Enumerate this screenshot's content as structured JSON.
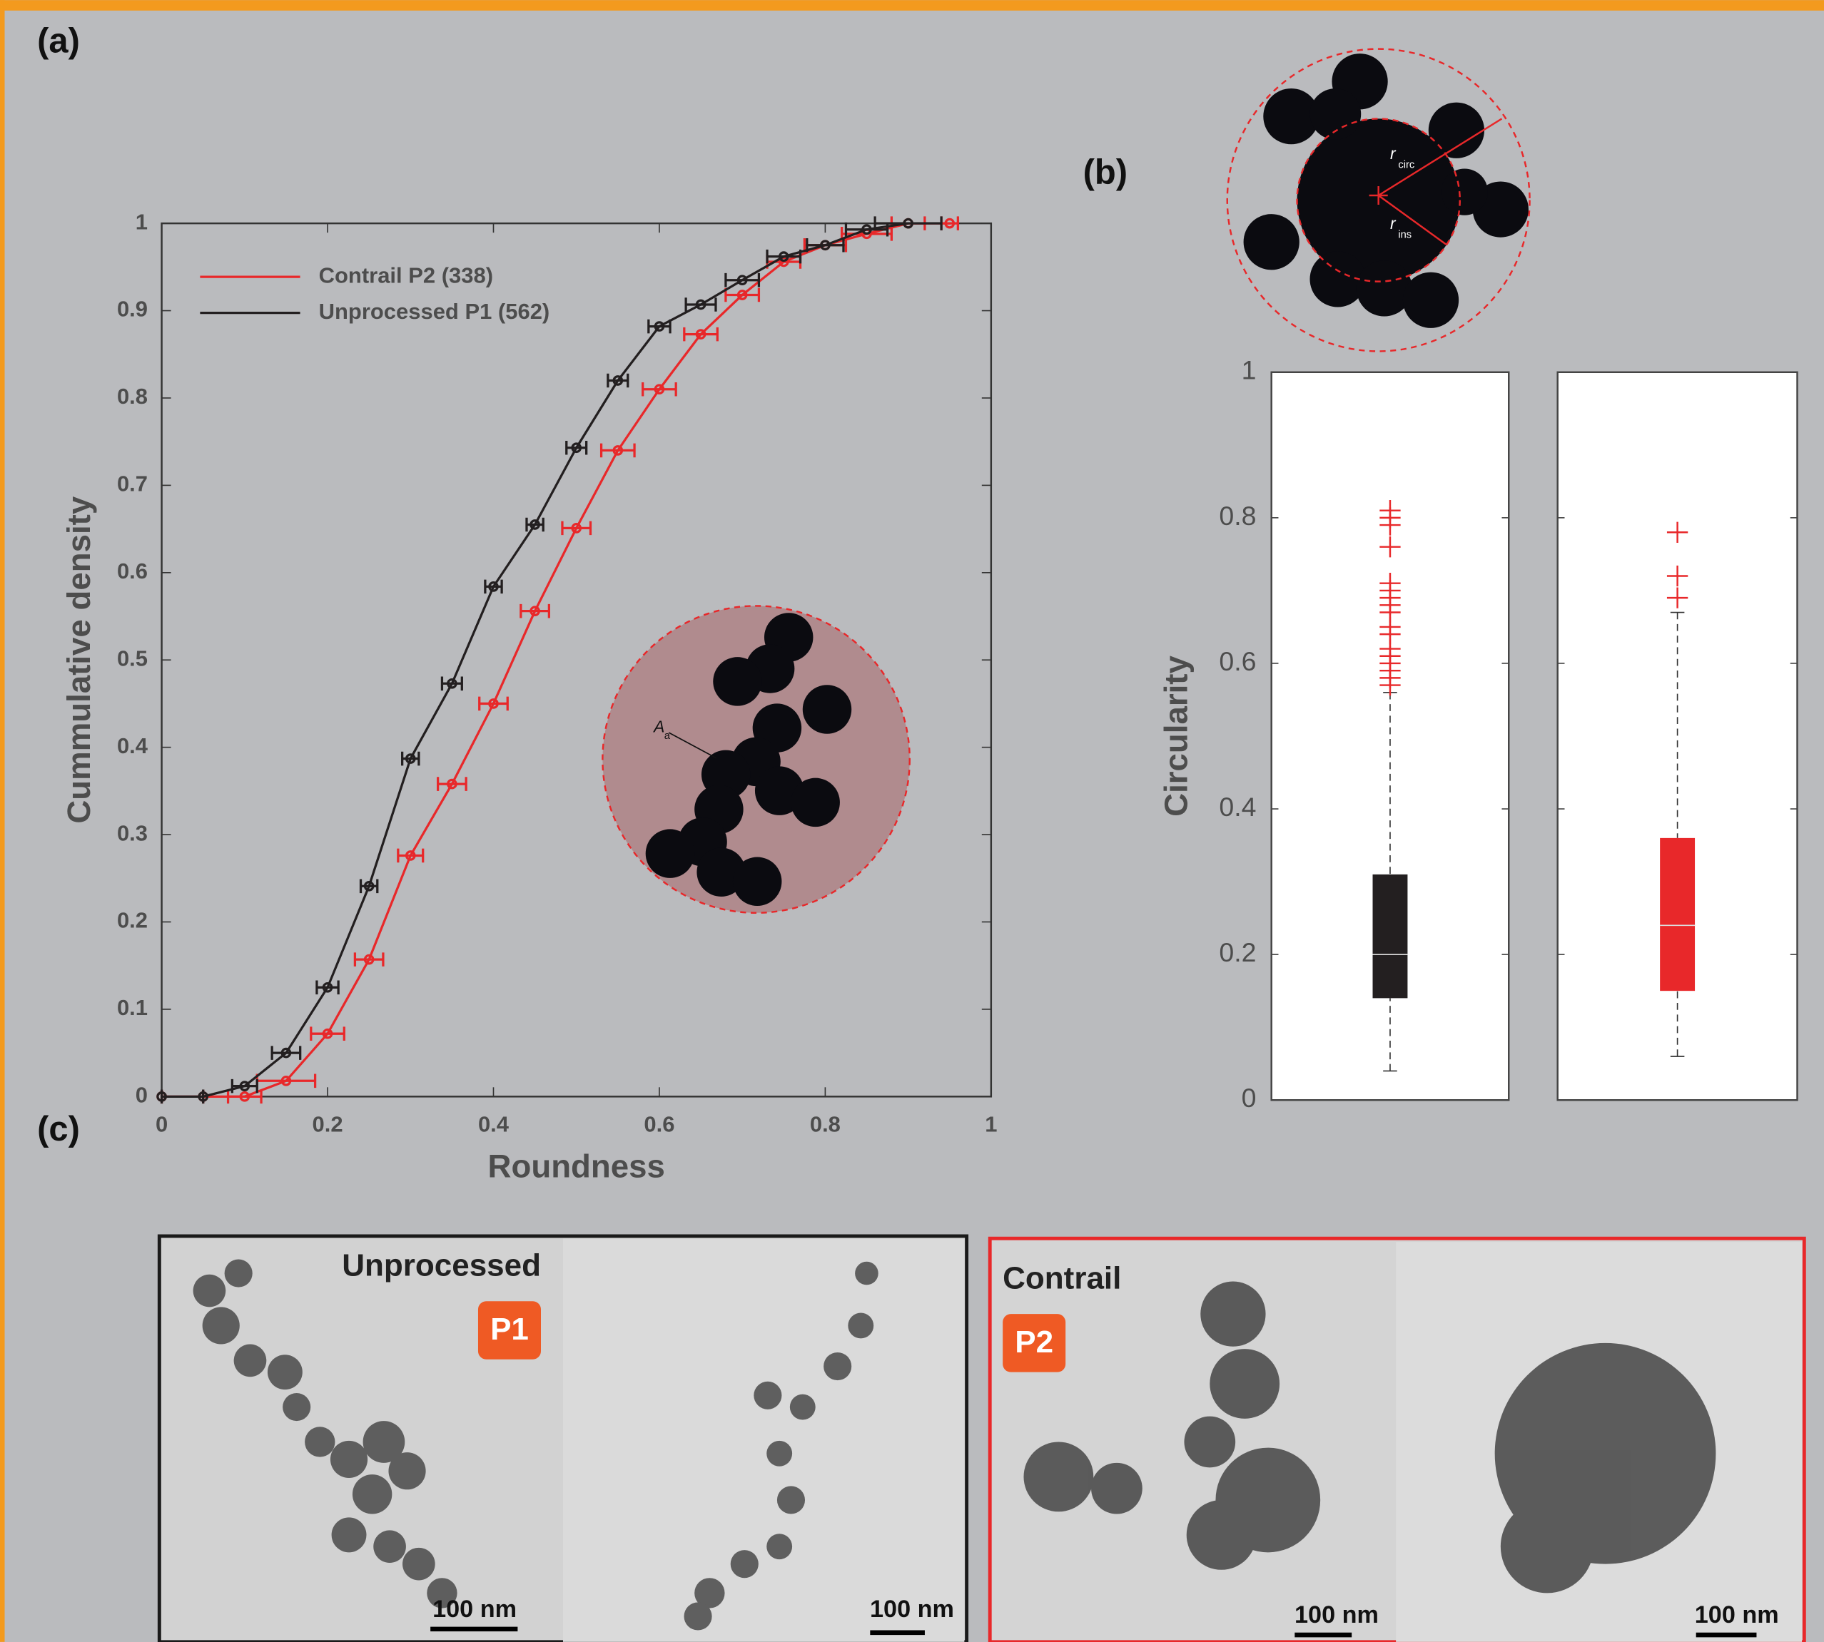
{
  "panels": {
    "a": "(a)",
    "b": "(b)",
    "c": "(c)"
  },
  "chart_data": [
    {
      "type": "line",
      "xlabel": "Roundness",
      "ylabel": "Cummulative density",
      "xlim": [
        0,
        1
      ],
      "ylim": [
        0,
        1
      ],
      "xticks": [
        0,
        0.2,
        0.4,
        0.6,
        0.8,
        1
      ],
      "yticks": [
        0,
        0.1,
        0.2,
        0.3,
        0.4,
        0.5,
        0.6,
        0.7,
        0.8,
        0.9,
        1
      ],
      "legend": "upper left",
      "series": [
        {
          "name": "Contrail P2 (338)",
          "color": "#e8282a",
          "x": [
            0,
            0.05,
            0.1,
            0.15,
            0.2,
            0.25,
            0.3,
            0.35,
            0.4,
            0.45,
            0.5,
            0.55,
            0.6,
            0.65,
            0.7,
            0.75,
            0.8,
            0.85,
            0.9,
            0.95
          ],
          "values": [
            0,
            0,
            0,
            0.018,
            0.072,
            0.157,
            0.276,
            0.358,
            0.45,
            0.556,
            0.651,
            0.74,
            0.81,
            0.873,
            0.918,
            0.956,
            0.975,
            0.988,
            1,
            1
          ],
          "xerr": [
            0,
            0,
            0.02,
            0.035,
            0.02,
            0.017,
            0.015,
            0.017,
            0.017,
            0.017,
            0.017,
            0.02,
            0.02,
            0.02,
            0.02,
            0.02,
            0.025,
            0.03,
            0.02,
            0.01
          ]
        },
        {
          "name": "Unprocessed P1 (562)",
          "color": "#231f20",
          "x": [
            0,
            0.05,
            0.1,
            0.15,
            0.2,
            0.25,
            0.3,
            0.35,
            0.4,
            0.45,
            0.5,
            0.55,
            0.6,
            0.65,
            0.7,
            0.75,
            0.8,
            0.85,
            0.9
          ],
          "values": [
            0,
            0,
            0.012,
            0.05,
            0.125,
            0.241,
            0.387,
            0.473,
            0.584,
            0.655,
            0.743,
            0.82,
            0.882,
            0.907,
            0.935,
            0.962,
            0.975,
            0.993,
            1
          ],
          "xerr": [
            0,
            0,
            0.015,
            0.017,
            0.013,
            0.01,
            0.01,
            0.012,
            0.01,
            0.01,
            0.012,
            0.012,
            0.013,
            0.018,
            0.02,
            0.02,
            0.022,
            0.025,
            0.04
          ]
        }
      ]
    },
    {
      "type": "box",
      "ylabel": "Circularity",
      "ylim": [
        0,
        1
      ],
      "yticks": [
        0,
        0.2,
        0.4,
        0.6,
        0.8,
        1
      ],
      "series": [
        {
          "color": "#231f20",
          "whisker_low": 0.04,
          "q1": 0.14,
          "median": 0.2,
          "q3": 0.31,
          "whisker_high": 0.56,
          "outliers": [
            0.57,
            0.58,
            0.59,
            0.6,
            0.61,
            0.62,
            0.64,
            0.65,
            0.67,
            0.68,
            0.69,
            0.7,
            0.71,
            0.76,
            0.79,
            0.8,
            0.81
          ],
          "outlier_color": "#e8282a"
        },
        {
          "color": "#e8282a",
          "whisker_low": 0.06,
          "q1": 0.15,
          "median": 0.24,
          "q3": 0.36,
          "whisker_high": 0.67,
          "outliers": [
            0.69,
            0.72,
            0.78
          ],
          "outlier_color": "#e8282a"
        }
      ]
    }
  ],
  "schematic": {
    "circ_symbol": "r",
    "circ_sub": "circ",
    "ins_symbol": "r",
    "ins_sub": "ins",
    "area_symbol": "A",
    "area_sub": "a"
  },
  "micrographs": {
    "left_label": "Unprocessed",
    "left_tag": "P1",
    "right_label": "Contrail",
    "right_tag": "P2",
    "scale_bars": [
      "100 nm",
      "100 nm",
      "100 nm",
      "100 nm"
    ]
  }
}
